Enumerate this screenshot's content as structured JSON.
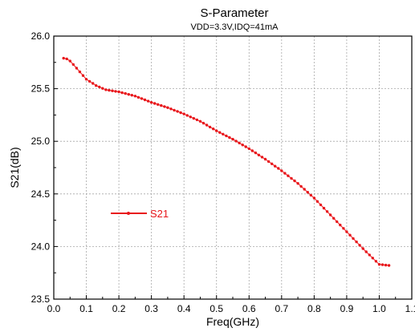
{
  "chart_data": {
    "type": "line",
    "title": "S-Parameter",
    "subtitle": "VDD=3.3V,IDQ=41mA",
    "xlabel": "Freq(GHz)",
    "ylabel": "S21(dB)",
    "xlim": [
      0.0,
      1.1
    ],
    "ylim": [
      23.5,
      26.0
    ],
    "x_ticks": [
      "0.0",
      "0.1",
      "0.2",
      "0.3",
      "0.4",
      "0.5",
      "0.6",
      "0.7",
      "0.8",
      "0.9",
      "1.0",
      "1.1"
    ],
    "y_ticks": [
      "23.5",
      "24.0",
      "24.5",
      "25.0",
      "25.5",
      "26.0"
    ],
    "grid": true,
    "legend": {
      "position": "center-left",
      "entries": [
        "S21"
      ]
    },
    "color": "#e8161b",
    "series": [
      {
        "name": "S21",
        "anchors": [
          [
            0.03,
            25.79
          ],
          [
            0.045,
            25.78
          ],
          [
            0.06,
            25.73
          ],
          [
            0.08,
            25.66
          ],
          [
            0.1,
            25.59
          ],
          [
            0.13,
            25.53
          ],
          [
            0.16,
            25.49
          ],
          [
            0.2,
            25.47
          ],
          [
            0.25,
            25.43
          ],
          [
            0.3,
            25.37
          ],
          [
            0.35,
            25.32
          ],
          [
            0.4,
            25.26
          ],
          [
            0.45,
            25.19
          ],
          [
            0.5,
            25.1
          ],
          [
            0.55,
            25.02
          ],
          [
            0.6,
            24.93
          ],
          [
            0.65,
            24.83
          ],
          [
            0.7,
            24.72
          ],
          [
            0.75,
            24.6
          ],
          [
            0.8,
            24.46
          ],
          [
            0.85,
            24.3
          ],
          [
            0.9,
            24.14
          ],
          [
            0.95,
            23.98
          ],
          [
            1.0,
            23.83
          ],
          [
            1.03,
            23.82
          ]
        ],
        "point_count": 101
      }
    ]
  }
}
